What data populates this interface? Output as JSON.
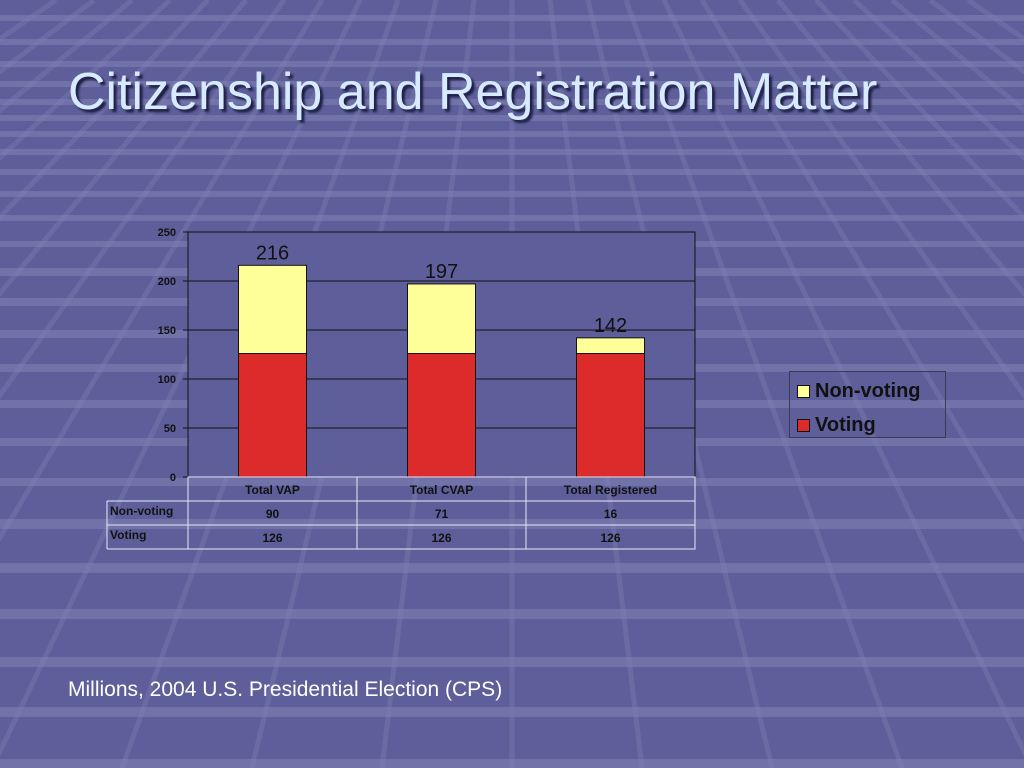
{
  "slide": {
    "title": "Citizenship and Registration Matter",
    "caption": "Millions, 2004 U.S. Presidential Election (CPS)"
  },
  "colors": {
    "background": "#5e5f9a",
    "grid_lines": "#8283b5",
    "title_text": "#d8eaff",
    "non_voting": "#ffff99",
    "voting": "#dd2a2a"
  },
  "chart_data": {
    "type": "bar",
    "stacked": true,
    "categories": [
      "Total VAP",
      "Total CVAP",
      "Total Registered"
    ],
    "series": [
      {
        "name": "Voting",
        "values": [
          126,
          126,
          126
        ],
        "color": "#dd2a2a"
      },
      {
        "name": "Non-voting",
        "values": [
          90,
          71,
          16
        ],
        "color": "#ffff99"
      }
    ],
    "totals": [
      216,
      197,
      142
    ],
    "total_labels": [
      "216",
      "197",
      "142"
    ],
    "yticks": [
      0,
      50,
      100,
      150,
      200,
      250
    ],
    "ytick_labels": [
      "0",
      "50",
      "100",
      "150",
      "200",
      "250"
    ],
    "ylim": [
      0,
      250
    ],
    "grid": true,
    "legend": {
      "position": "right",
      "items": [
        {
          "label": "Non-voting",
          "color": "#ffff99"
        },
        {
          "label": "Voting",
          "color": "#dd2a2a"
        }
      ]
    },
    "data_table": {
      "rows": [
        {
          "label": "Non-voting",
          "cells": [
            "90",
            "71",
            "16"
          ]
        },
        {
          "label": "Voting",
          "cells": [
            "126",
            "126",
            "126"
          ]
        }
      ]
    }
  }
}
